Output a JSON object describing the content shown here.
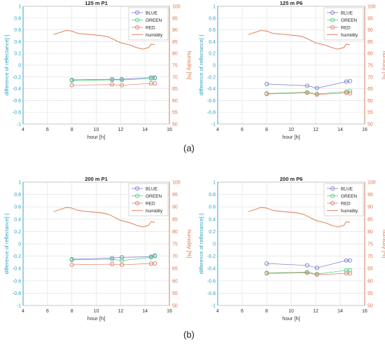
{
  "captions": {
    "a": "(a)",
    "b": "(b)"
  },
  "colors": {
    "blue": "#7b7bd6",
    "green": "#4fd17c",
    "red": "#e07a6a",
    "humidity": "#d9744a",
    "left_axis": "#2aa0c8",
    "right_axis": "#d9744a",
    "grid": "#e3e3e3",
    "plot_bg": "#ffffff"
  },
  "chart_data": [
    {
      "type": "line",
      "title": "125 m  P1",
      "xlabel": "hour [h]",
      "ylabel": "difference of reflectance[-]",
      "y2label": "humidity [%]",
      "xlim": [
        4,
        16
      ],
      "ylim": [
        -1,
        1
      ],
      "y2lim": [
        50,
        100
      ],
      "xticks": [
        "4",
        "6",
        "8",
        "10",
        "12",
        "14",
        "16"
      ],
      "yticks": [
        "-1",
        "-0.8",
        "-0.6",
        "-0.4",
        "-0.2",
        "0",
        "0.2",
        "0.4",
        "0.6",
        "0.8",
        "1"
      ],
      "y2ticks": [
        "50",
        "55",
        "60",
        "65",
        "70",
        "75",
        "80",
        "85",
        "90",
        "95",
        "100"
      ],
      "grid": true,
      "legend_position": "top-right",
      "series": [
        {
          "name": "BLUE",
          "color_key": "blue",
          "x": [
            8.0,
            11.3,
            12.1,
            14.5,
            14.8
          ],
          "y": [
            -0.25,
            -0.24,
            -0.24,
            -0.21,
            -0.21
          ]
        },
        {
          "name": "GREEN",
          "color_key": "green",
          "x": [
            8.0,
            11.3,
            12.1,
            14.5,
            14.8
          ],
          "y": [
            -0.26,
            -0.25,
            -0.25,
            -0.23,
            -0.22
          ]
        },
        {
          "name": "RED",
          "color_key": "red",
          "x": [
            8.0,
            11.3,
            12.1,
            14.5,
            14.8
          ],
          "y": [
            -0.34,
            -0.33,
            -0.34,
            -0.31,
            -0.31
          ]
        }
      ],
      "humidity": {
        "name": "humidity",
        "x": [
          6.5,
          7.5,
          8.0,
          8.5,
          9.5,
          10.5,
          11.0,
          12.0,
          12.8,
          13.3,
          13.8,
          14.3,
          14.5,
          14.8
        ],
        "y": [
          88,
          89.7,
          89.5,
          88.5,
          88,
          87.5,
          87,
          84.5,
          83.5,
          82.5,
          81.8,
          82.5,
          84,
          83.7
        ]
      }
    },
    {
      "type": "line",
      "title": "125 m  P6",
      "xlabel": "hour [h]",
      "ylabel": "difference of reflectance[-]",
      "y2label": "humidity [%]",
      "xlim": [
        4,
        16
      ],
      "ylim": [
        -1,
        1
      ],
      "y2lim": [
        50,
        100
      ],
      "xticks": [
        "4",
        "6",
        "8",
        "10",
        "12",
        "14",
        "16"
      ],
      "yticks": [
        "-1",
        "-0.8",
        "-0.6",
        "-0.4",
        "-0.2",
        "0",
        "0.2",
        "0.4",
        "0.6",
        "0.8",
        "1"
      ],
      "y2ticks": [
        "50",
        "55",
        "60",
        "65",
        "70",
        "75",
        "80",
        "85",
        "90",
        "95",
        "100"
      ],
      "grid": true,
      "legend_position": "top-right",
      "series": [
        {
          "name": "BLUE",
          "color_key": "blue",
          "x": [
            8.0,
            11.3,
            12.1,
            14.5,
            14.8
          ],
          "y": [
            -0.32,
            -0.35,
            -0.39,
            -0.28,
            -0.27
          ]
        },
        {
          "name": "GREEN",
          "color_key": "green",
          "x": [
            8.0,
            11.3,
            12.1,
            14.5,
            14.8
          ],
          "y": [
            -0.48,
            -0.46,
            -0.49,
            -0.45,
            -0.44
          ]
        },
        {
          "name": "RED",
          "color_key": "red",
          "x": [
            8.0,
            11.3,
            12.1,
            14.5,
            14.8
          ],
          "y": [
            -0.49,
            -0.47,
            -0.5,
            -0.47,
            -0.48
          ]
        }
      ],
      "humidity": {
        "name": "humidity",
        "x": [
          6.5,
          7.5,
          8.0,
          8.5,
          9.5,
          10.5,
          11.0,
          12.0,
          12.8,
          13.3,
          13.8,
          14.3,
          14.5,
          14.8
        ],
        "y": [
          88,
          89.7,
          89.5,
          88.5,
          88,
          87.5,
          87,
          84.5,
          83.5,
          82.5,
          81.8,
          82.5,
          84,
          83.7
        ]
      }
    },
    {
      "type": "line",
      "title": "200 m  P1",
      "xlabel": "hour [h]",
      "ylabel": "difference of reflectance[-]",
      "y2label": "humidity [%]",
      "xlim": [
        4,
        16
      ],
      "ylim": [
        -1,
        1
      ],
      "y2lim": [
        50,
        100
      ],
      "xticks": [
        "4",
        "6",
        "8",
        "10",
        "12",
        "14",
        "16"
      ],
      "yticks": [
        "-1",
        "-0.8",
        "-0.6",
        "-0.4",
        "-0.2",
        "0",
        "0.2",
        "0.4",
        "0.6",
        "0.8",
        "1"
      ],
      "y2ticks": [
        "50",
        "55",
        "60",
        "65",
        "70",
        "75",
        "80",
        "85",
        "90",
        "95",
        "100"
      ],
      "grid": true,
      "legend_position": "top-right",
      "series": [
        {
          "name": "BLUE",
          "color_key": "blue",
          "x": [
            8.0,
            11.3,
            12.1,
            14.5,
            14.8
          ],
          "y": [
            -0.25,
            -0.23,
            -0.22,
            -0.21,
            -0.19
          ]
        },
        {
          "name": "GREEN",
          "color_key": "green",
          "x": [
            8.0,
            11.3,
            12.1,
            14.5,
            14.8
          ],
          "y": [
            -0.26,
            -0.25,
            -0.27,
            -0.22,
            -0.2
          ]
        },
        {
          "name": "RED",
          "color_key": "red",
          "x": [
            8.0,
            11.3,
            12.1,
            14.5,
            14.8
          ],
          "y": [
            -0.34,
            -0.33,
            -0.34,
            -0.32,
            -0.32
          ]
        }
      ],
      "humidity": {
        "name": "humidity",
        "x": [
          6.5,
          7.5,
          8.0,
          8.5,
          9.5,
          10.5,
          11.0,
          12.0,
          12.8,
          13.3,
          13.8,
          14.3,
          14.5,
          14.8
        ],
        "y": [
          88,
          89.7,
          89.5,
          88.5,
          88,
          87.5,
          87,
          84.5,
          83.5,
          82.5,
          81.8,
          82.5,
          84,
          83.7
        ]
      }
    },
    {
      "type": "line",
      "title": "200 m  P6",
      "xlabel": "hour [h]",
      "ylabel": "difference of reflectance[-]",
      "y2label": "humidity [%]",
      "xlim": [
        4,
        16
      ],
      "ylim": [
        -1,
        1
      ],
      "y2lim": [
        50,
        100
      ],
      "xticks": [
        "4",
        "6",
        "8",
        "10",
        "12",
        "14",
        "16"
      ],
      "yticks": [
        "-1",
        "-0.8",
        "-0.6",
        "-0.4",
        "-0.2",
        "0",
        "0.2",
        "0.4",
        "0.6",
        "0.8",
        "1"
      ],
      "y2ticks": [
        "50",
        "55",
        "60",
        "65",
        "70",
        "75",
        "80",
        "85",
        "90",
        "95",
        "100"
      ],
      "grid": true,
      "legend_position": "top-right",
      "series": [
        {
          "name": "BLUE",
          "color_key": "blue",
          "x": [
            8.0,
            11.3,
            12.1,
            14.5,
            14.8
          ],
          "y": [
            -0.32,
            -0.35,
            -0.39,
            -0.27,
            -0.27
          ]
        },
        {
          "name": "GREEN",
          "color_key": "green",
          "x": [
            8.0,
            11.3,
            12.1,
            14.5,
            14.8
          ],
          "y": [
            -0.47,
            -0.46,
            -0.49,
            -0.43,
            -0.43
          ]
        },
        {
          "name": "RED",
          "color_key": "red",
          "x": [
            8.0,
            11.3,
            12.1,
            14.5,
            14.8
          ],
          "y": [
            -0.48,
            -0.47,
            -0.5,
            -0.48,
            -0.48
          ]
        }
      ],
      "humidity": {
        "name": "humidity",
        "x": [
          6.5,
          7.5,
          8.0,
          8.5,
          9.5,
          10.5,
          11.0,
          12.0,
          12.8,
          13.3,
          13.8,
          14.3,
          14.5,
          14.8
        ],
        "y": [
          88,
          89.7,
          89.5,
          88.5,
          88,
          87.5,
          87,
          84.5,
          83.5,
          82.5,
          81.8,
          82.5,
          84,
          83.7
        ]
      }
    }
  ]
}
